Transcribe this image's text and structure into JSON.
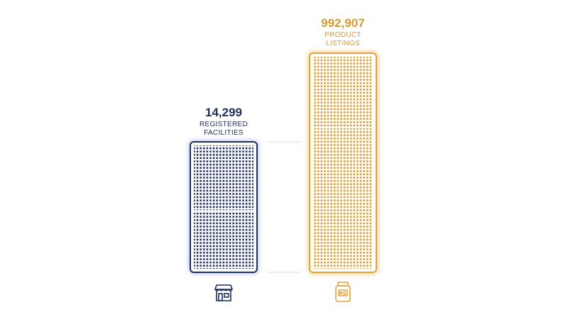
{
  "items": [
    {
      "figure": "14,299",
      "label_lines": [
        "REGISTERED",
        "FACILITIES"
      ]
    },
    {
      "figure": "992,907",
      "label_lines": [
        "PRODUCT",
        "LISTINGS"
      ]
    }
  ]
}
